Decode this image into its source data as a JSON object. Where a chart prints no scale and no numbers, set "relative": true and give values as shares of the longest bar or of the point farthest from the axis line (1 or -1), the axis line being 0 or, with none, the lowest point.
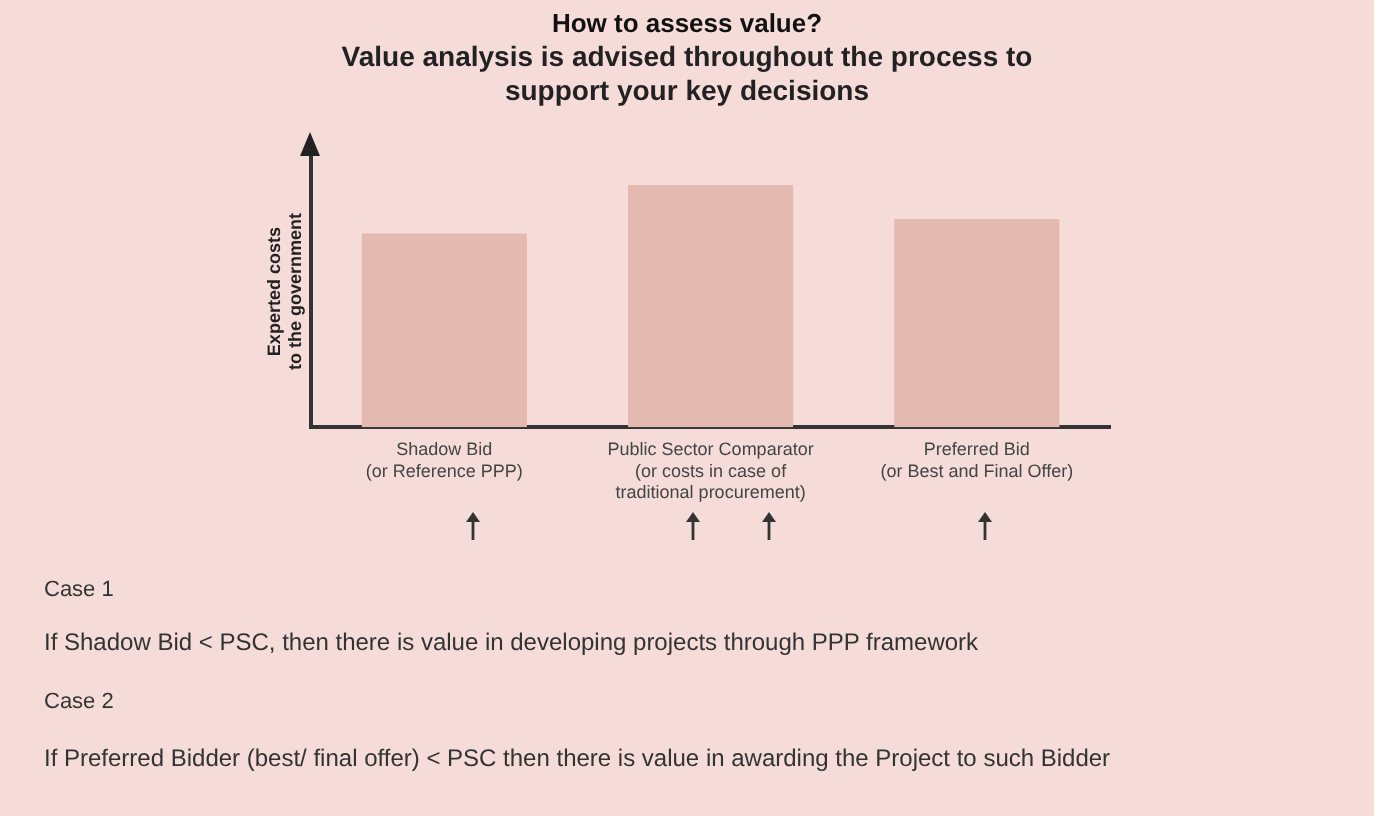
{
  "chart_data": {
    "type": "bar",
    "title": "How to assess value?",
    "subtitle": "Value analysis is advised throughout the process to\nsupport your key decisions",
    "ylabel": "Experted costs\nto the government",
    "categories": [
      "Shadow Bid\n(or Reference PPP)",
      "Public Sector Comparator\n(or costs in case of\ntraditional procurement)",
      "Preferred Bid\n(or Best and Final Offer)"
    ],
    "values": [
      0.8,
      1,
      0.86
    ],
    "color": "#e3b9b0",
    "relative": true,
    "grid": false,
    "legend": false,
    "annotations": [
      "Case 1",
      "If Shadow Bid < PSC, then there is value in developing projects through PPP framework",
      "Case 2",
      "If Preferred Bidder (best/ final offer) < PSC then there is value in awarding the Project to such Bidder"
    ]
  }
}
